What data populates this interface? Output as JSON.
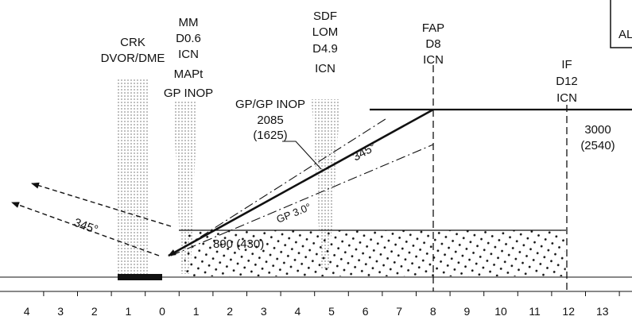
{
  "fixes": [
    {
      "id": "crk",
      "lines": [
        "CRK",
        "DVOR/DME"
      ]
    },
    {
      "id": "mm",
      "lines": [
        "MM",
        "D0.6",
        "ICN",
        "MAPt",
        "GP INOP"
      ]
    },
    {
      "id": "sdf",
      "lines": [
        "SDF",
        "LOM",
        "D4.9",
        "ICN"
      ]
    },
    {
      "id": "fap",
      "lines": [
        "FAP",
        "D8",
        "ICN"
      ]
    },
    {
      "id": "if",
      "lines": [
        "IF",
        "D12",
        "ICN"
      ]
    }
  ],
  "corner_text": "AL",
  "gp_inop_lines": [
    "GP/GP INOP",
    "2085",
    "(1625)"
  ],
  "altitude_lines": [
    "3000",
    "(2540)"
  ],
  "course_label": "345°",
  "missed_course_label": "345°",
  "glidepath_label": "GP 3.0°",
  "obstacle_label": "890 (430)",
  "distance_scale": [
    "4",
    "3",
    "2",
    "1",
    "0",
    "1",
    "2",
    "3",
    "4",
    "5",
    "6",
    "7",
    "8",
    "9",
    "10",
    "11",
    "12",
    "13",
    "1"
  ]
}
